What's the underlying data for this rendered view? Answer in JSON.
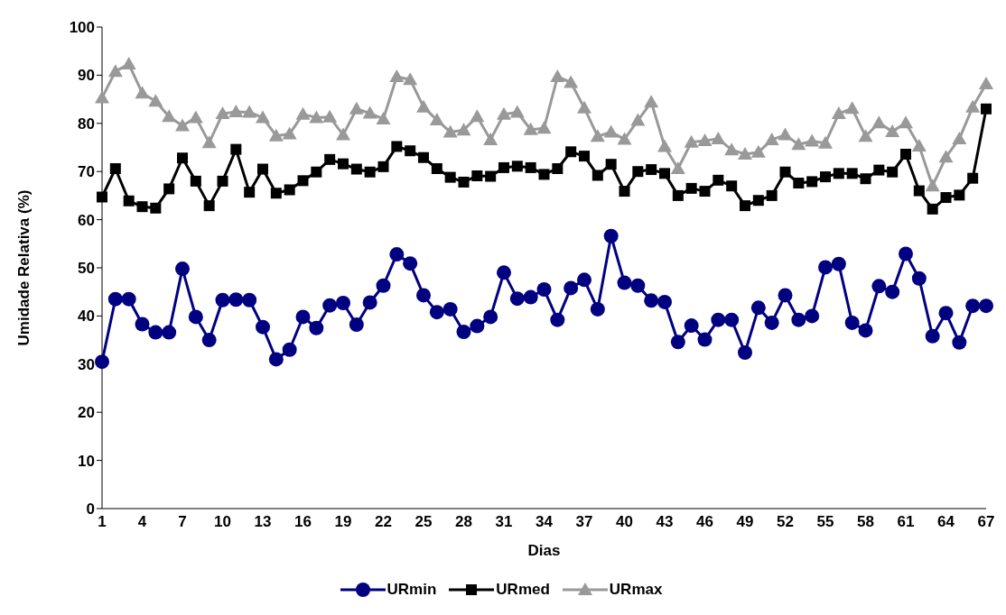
{
  "chart_data": {
    "type": "line",
    "xlabel": "Dias",
    "ylabel": "Umidade Relativa (%)",
    "categories": [
      "1",
      null,
      null,
      "4",
      null,
      null,
      "7",
      null,
      null,
      "10",
      null,
      null,
      "13",
      null,
      null,
      "16",
      null,
      null,
      "19",
      null,
      null,
      "22",
      null,
      null,
      "25",
      null,
      null,
      "28",
      null,
      null,
      "31",
      null,
      null,
      "34",
      null,
      null,
      "37",
      null,
      null,
      "40",
      null,
      null,
      "43",
      null,
      null,
      "46",
      null,
      null,
      "49",
      null,
      null,
      "52",
      null,
      null,
      "55",
      null,
      null,
      "58",
      null,
      null,
      "61",
      null,
      null,
      "64",
      null,
      null,
      "67"
    ],
    "series": [
      {
        "name": "URmin",
        "color": "#000080",
        "marker": "circle",
        "values": [
          30.5,
          43.5,
          43.5,
          38.3,
          36.6,
          36.6,
          49.8,
          39.8,
          35,
          43.3,
          43.4,
          43.3,
          37.7,
          31,
          33,
          39.8,
          37.5,
          42.2,
          42.7,
          38.2,
          42.8,
          46.3,
          52.8,
          50.9,
          44.3,
          40.8,
          41.4,
          36.7,
          37.9,
          39.8,
          49,
          43.6,
          43.9,
          45.5,
          39.2,
          45.8,
          47.5,
          41.4,
          56.6,
          46.9,
          46.3,
          43.2,
          42.9,
          34.6,
          38,
          35.1,
          39.2,
          39.2,
          32.4,
          41.7,
          38.6,
          44.3,
          39.2,
          40,
          50.1,
          50.8,
          38.6,
          37,
          46.2,
          45,
          52.9,
          47.8,
          35.8,
          40.6,
          34.5,
          42.1,
          42.1
        ]
      },
      {
        "name": "URmed",
        "color": "#000000",
        "marker": "square",
        "values": [
          64.7,
          70.6,
          63.9,
          62.7,
          62.4,
          66.4,
          72.8,
          68,
          62.9,
          68,
          74.6,
          65.7,
          70.5,
          65.5,
          66.2,
          68.1,
          69.9,
          72.5,
          71.6,
          70.5,
          69.9,
          71,
          75.2,
          74.3,
          72.9,
          70.6,
          68.8,
          67.8,
          69.1,
          69,
          70.8,
          71.1,
          70.8,
          69.4,
          70.6,
          74.1,
          73.2,
          69.2,
          71.5,
          65.9,
          70,
          70.4,
          69.6,
          65,
          66.5,
          65.9,
          68.2,
          67,
          62.9,
          64,
          65,
          69.9,
          67.6,
          67.9,
          68.9,
          69.6,
          69.6,
          68.5,
          70.3,
          69.9,
          73.6,
          66,
          62.2,
          64.6,
          65.1,
          68.6,
          83
        ]
      },
      {
        "name": "URmax",
        "color": "#999999",
        "marker": "triangle",
        "values": [
          85.3,
          90.8,
          92.3,
          86.3,
          84.6,
          81.4,
          79.5,
          81.2,
          76,
          82,
          82.4,
          82.3,
          81.2,
          77.4,
          77.8,
          81.9,
          81.2,
          81.3,
          77.6,
          83,
          82.1,
          80.9,
          89.7,
          89.1,
          83.4,
          80.7,
          78.2,
          78.6,
          81.4,
          76.6,
          81.9,
          82.3,
          78.7,
          79,
          89.7,
          88.5,
          83.2,
          77.3,
          78.2,
          76.7,
          80.6,
          84.4,
          75.2,
          70.6,
          76.1,
          76.4,
          76.8,
          74.5,
          73.6,
          74,
          76.6,
          77.6,
          75.6,
          76.3,
          75.9,
          82,
          83.1,
          77.3,
          80.1,
          78.3,
          80.1,
          75.3,
          67,
          73,
          76.8,
          83.4,
          88.2
        ]
      }
    ],
    "ylim": [
      0,
      100
    ],
    "yticks": [
      0,
      10,
      20,
      30,
      40,
      50,
      60,
      70,
      80,
      90,
      100
    ],
    "grid": false,
    "legend": "bottom",
    "line_style": "solid"
  }
}
